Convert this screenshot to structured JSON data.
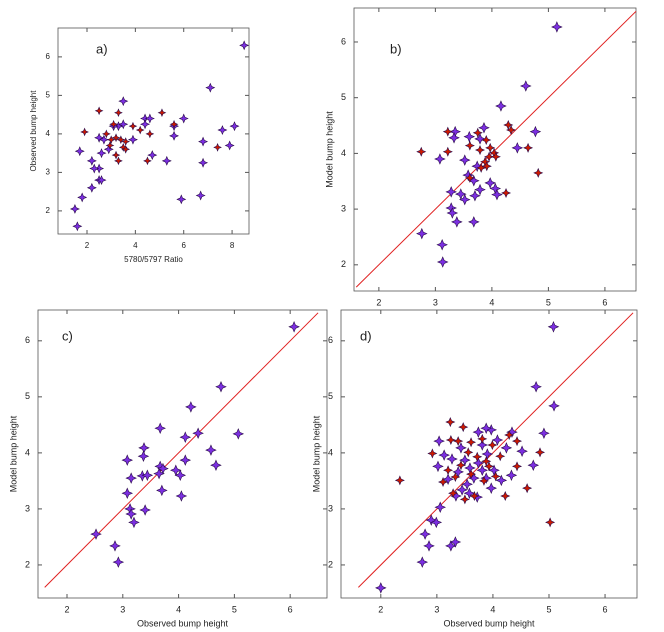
{
  "chart_data": [
    {
      "type": "scatter",
      "label": "a)",
      "x_label": "5780/5797 Ratio",
      "y_label": "Observed bump height",
      "xlim": [
        0.8,
        8.7
      ],
      "ylim": [
        1.4,
        6.75
      ],
      "xticks": [
        2,
        4,
        6,
        8
      ],
      "yticks": [
        2,
        3,
        4,
        5,
        6
      ],
      "series": [
        {
          "color": "#7b2fe0",
          "x": [
            8.5,
            7.1,
            1.6,
            1.5,
            1.8,
            2.2,
            2.5,
            2.6,
            2.5,
            2.3,
            1.7,
            2.2,
            2.6,
            2.9,
            2.5,
            2.7,
            3.5,
            3.3,
            3.9,
            4.4,
            4.6,
            4.4,
            4.7,
            5.3,
            5.6,
            5.6,
            6.0,
            5.9,
            6.7,
            6.8,
            6.8,
            7.6,
            8.1,
            7.9,
            3.1,
            3.5
          ],
          "y": [
            6.3,
            5.2,
            1.6,
            2.05,
            2.35,
            2.6,
            2.8,
            2.8,
            3.1,
            3.1,
            3.55,
            3.3,
            3.5,
            3.6,
            3.9,
            3.85,
            4.85,
            4.2,
            3.85,
            4.4,
            4.4,
            4.25,
            3.45,
            3.3,
            4.2,
            3.95,
            4.4,
            2.3,
            2.4,
            3.25,
            3.8,
            4.1,
            4.2,
            3.7,
            4.2,
            4.25
          ]
        },
        {
          "color": "#cc1a00",
          "x": [
            2.5,
            1.9,
            3.3,
            3.1,
            2.8,
            3.0,
            3.2,
            3.4,
            3.6,
            3.5,
            3.2,
            3.3,
            3.9,
            4.2,
            4.6,
            4.5,
            5.1,
            5.6,
            7.4,
            3.6,
            2.95
          ],
          "y": [
            4.6,
            4.05,
            4.55,
            4.25,
            4.0,
            3.85,
            3.9,
            3.85,
            3.8,
            3.65,
            3.45,
            3.3,
            4.2,
            4.1,
            4.0,
            3.3,
            4.55,
            4.25,
            3.65,
            3.6,
            3.7
          ]
        }
      ]
    },
    {
      "type": "scatter",
      "label": "b)",
      "y_label": "Model bump height",
      "xlim": [
        1.56,
        6.55
      ],
      "ylim": [
        1.53,
        6.61
      ],
      "xticks": [
        2,
        3,
        4,
        5,
        6
      ],
      "yticks": [
        2,
        3,
        4,
        5,
        6
      ],
      "diagonal": [
        1.6,
        6.55
      ],
      "diagonal_color": "#e02020",
      "series": [
        {
          "color": "#7b2fe0",
          "x": [
            5.15,
            4.6,
            4.16,
            4.77,
            4.45,
            3.08,
            3.6,
            3.79,
            3.52,
            3.86,
            3.35,
            3.33,
            3.58,
            3.74,
            3.28,
            3.97,
            4.06,
            3.45,
            3.7,
            3.28,
            3.52,
            3.3,
            3.38,
            3.79,
            3.68,
            2.76,
            3.12,
            3.13,
            4.09,
            3.68
          ],
          "y": [
            6.27,
            5.21,
            4.85,
            4.39,
            4.1,
            3.9,
            4.3,
            4.26,
            3.88,
            4.46,
            4.39,
            4.28,
            3.61,
            3.77,
            3.31,
            3.47,
            3.37,
            3.27,
            3.24,
            3.02,
            3.17,
            2.93,
            2.77,
            3.35,
            2.77,
            2.56,
            2.36,
            2.05,
            3.26,
            3.51
          ]
        },
        {
          "color": "#cc1a00",
          "x": [
            2.75,
            3.22,
            3.61,
            3.75,
            3.9,
            3.97,
            4.04,
            3.95,
            4.07,
            3.88,
            3.81,
            3.91,
            3.61,
            4.29,
            4.34,
            4.25,
            4.64,
            4.82,
            3.22,
            3.79
          ],
          "y": [
            4.03,
            4.03,
            4.14,
            4.37,
            4.24,
            4.1,
            4.01,
            3.94,
            3.94,
            3.85,
            3.74,
            3.77,
            3.56,
            4.51,
            4.42,
            3.29,
            4.1,
            3.65,
            4.39,
            4.06
          ]
        }
      ]
    },
    {
      "type": "scatter",
      "label": "c)",
      "x_label": "Observed bump height",
      "y_label": "Model bump height",
      "xlim": [
        1.48,
        6.66
      ],
      "ylim": [
        1.41,
        6.55
      ],
      "xticks": [
        2,
        3,
        4,
        5,
        6
      ],
      "yticks": [
        2,
        3,
        4,
        5,
        6
      ],
      "diagonal": [
        1.6,
        6.5
      ],
      "diagonal_color": "#e02020",
      "series": [
        {
          "color": "#7b2fe0",
          "x": [
            6.07,
            4.76,
            4.22,
            5.07,
            4.58,
            4.35,
            4.12,
            4.12,
            3.67,
            4.67,
            3.08,
            3.38,
            3.37,
            3.67,
            3.65,
            3.72,
            3.35,
            3.44,
            3.15,
            3.95,
            3.7,
            4.03,
            4.05,
            3.08,
            3.4,
            3.13,
            3.15,
            3.2,
            2.52,
            2.86,
            2.92
          ],
          "y": [
            6.25,
            5.18,
            4.82,
            4.34,
            4.05,
            4.35,
            4.28,
            3.87,
            4.44,
            3.78,
            3.87,
            4.09,
            3.94,
            3.76,
            3.63,
            3.72,
            3.59,
            3.6,
            3.55,
            3.69,
            3.33,
            3.6,
            3.23,
            3.28,
            2.98,
            3.0,
            2.91,
            2.76,
            2.55,
            2.34,
            2.05
          ]
        }
      ]
    },
    {
      "type": "scatter",
      "label": "d)",
      "x_label": "Observed bump height",
      "y_label": "Model bump height",
      "xlim": [
        1.29,
        6.57
      ],
      "ylim": [
        1.41,
        6.55
      ],
      "xticks": [
        2,
        3,
        4,
        5,
        6
      ],
      "yticks": [
        2,
        3,
        4,
        5,
        6
      ],
      "diagonal": [
        1.6,
        6.5
      ],
      "diagonal_color": "#e02020",
      "series": [
        {
          "color": "#7b2fe0",
          "x": [
            5.08,
            4.77,
            5.09,
            2.0,
            2.74,
            2.79,
            2.9,
            2.99,
            2.86,
            3.25,
            3.33,
            3.06,
            3.34,
            3.45,
            3.58,
            3.72,
            3.54,
            3.66,
            3.88,
            3.81,
            3.59,
            3.5,
            3.27,
            3.02,
            3.2,
            3.38,
            3.74,
            3.9,
            3.81,
            3.97,
            3.74,
            3.88,
            4.08,
            4.24,
            4.34,
            4.52,
            4.72,
            4.91,
            3.04,
            3.43,
            3.13,
            4.02,
            4.15,
            3.97,
            4.33
          ],
          "y": [
            6.25,
            5.18,
            4.84,
            1.59,
            2.05,
            2.55,
            2.8,
            2.76,
            2.34,
            2.34,
            2.41,
            3.03,
            3.23,
            3.34,
            3.28,
            3.21,
            3.44,
            3.55,
            3.55,
            3.69,
            3.73,
            3.87,
            3.89,
            3.76,
            3.53,
            3.66,
            3.82,
            3.98,
            4.14,
            4.41,
            4.37,
            4.44,
            4.23,
            4.09,
            4.37,
            4.03,
            3.78,
            4.35,
            4.21,
            4.09,
            3.96,
            3.69,
            3.51,
            3.37,
            3.6
          ]
        },
        {
          "color": "#cc1a00",
          "x": [
            2.34,
            2.92,
            3.24,
            3.47,
            3.25,
            3.38,
            3.61,
            3.81,
            3.99,
            4.13,
            3.88,
            3.72,
            3.56,
            3.43,
            3.2,
            3.33,
            3.29,
            3.5,
            3.67,
            3.93,
            4.05,
            4.29,
            4.43,
            4.43,
            4.61,
            4.84,
            5.02,
            3.61,
            3.84,
            3.11,
            4.22
          ],
          "y": [
            3.51,
            3.99,
            4.55,
            4.46,
            4.23,
            4.21,
            4.19,
            4.25,
            4.14,
            3.94,
            3.85,
            3.93,
            4.01,
            3.78,
            3.69,
            3.57,
            3.28,
            3.17,
            3.23,
            3.76,
            3.58,
            4.32,
            4.21,
            3.76,
            3.37,
            4.01,
            2.76,
            3.62,
            3.5,
            3.48,
            3.23
          ]
        }
      ]
    }
  ]
}
